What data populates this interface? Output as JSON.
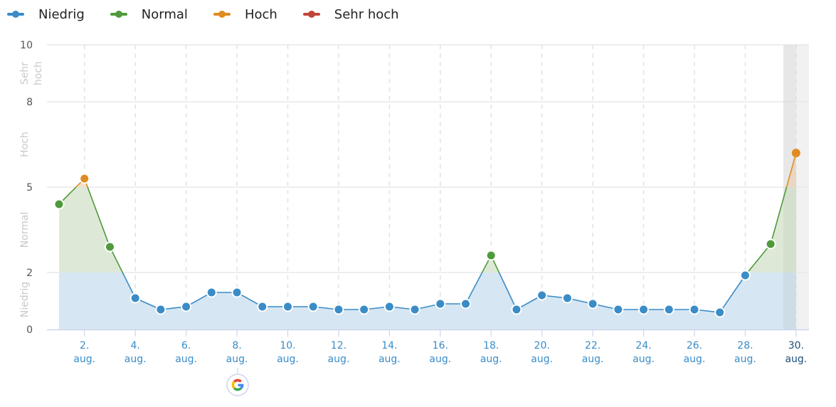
{
  "legend": [
    {
      "label": "Niedrig",
      "color": "#3a8cc7"
    },
    {
      "label": "Normal",
      "color": "#4f9a3c"
    },
    {
      "label": "Hoch",
      "color": "#e08c20"
    },
    {
      "label": "Sehr hoch",
      "color": "#c0453a"
    }
  ],
  "y_axis": {
    "ticks": [
      "10",
      "8",
      "5",
      "2",
      "0"
    ],
    "zones": [
      {
        "label": "Sehr hoch",
        "line1": "Sehr",
        "line2": "hoch"
      },
      {
        "label": "Hoch"
      },
      {
        "label": "Normal"
      },
      {
        "label": "Niedrig"
      }
    ]
  },
  "x_axis": {
    "ticks": [
      {
        "l1": "2.",
        "l2": "aug."
      },
      {
        "l1": "4.",
        "l2": "aug."
      },
      {
        "l1": "6.",
        "l2": "aug."
      },
      {
        "l1": "8.",
        "l2": "aug."
      },
      {
        "l1": "10.",
        "l2": "aug."
      },
      {
        "l1": "12.",
        "l2": "aug."
      },
      {
        "l1": "14.",
        "l2": "aug."
      },
      {
        "l1": "16.",
        "l2": "aug."
      },
      {
        "l1": "18.",
        "l2": "aug."
      },
      {
        "l1": "20.",
        "l2": "aug."
      },
      {
        "l1": "22.",
        "l2": "aug."
      },
      {
        "l1": "24.",
        "l2": "aug."
      },
      {
        "l1": "26.",
        "l2": "aug."
      },
      {
        "l1": "28.",
        "l2": "aug."
      },
      {
        "l1": "30.",
        "l2": "aug."
      }
    ]
  },
  "annotation": {
    "day": 8,
    "icon": "google-icon"
  },
  "colors": {
    "low": "#3a8cc7",
    "normal": "#4f9a3c",
    "high": "#e08c20",
    "very_high": "#c0453a",
    "low_fill": "#d6e6f2",
    "normal_fill": "#dde9d6",
    "high_fill": "#f3dfcb"
  },
  "chart_data": {
    "type": "area",
    "title": "",
    "xlabel": "",
    "ylabel": "",
    "ylim": [
      0,
      10
    ],
    "y_ticks": [
      0,
      2,
      5,
      8,
      10
    ],
    "zones": [
      {
        "name": "Niedrig",
        "range": [
          0,
          2
        ]
      },
      {
        "name": "Normal",
        "range": [
          2,
          5
        ]
      },
      {
        "name": "Hoch",
        "range": [
          5,
          8
        ]
      },
      {
        "name": "Sehr hoch",
        "range": [
          8,
          10
        ]
      }
    ],
    "legend": [
      "Niedrig",
      "Normal",
      "Hoch",
      "Sehr hoch"
    ],
    "legend_position": "top-left",
    "grid": true,
    "highlighted_x": "30. aug.",
    "x": [
      "1. aug.",
      "2. aug.",
      "3. aug.",
      "4. aug.",
      "5. aug.",
      "6. aug.",
      "7. aug.",
      "8. aug.",
      "9. aug.",
      "10. aug.",
      "11. aug.",
      "12. aug.",
      "13. aug.",
      "14. aug.",
      "15. aug.",
      "16. aug.",
      "17. aug.",
      "18. aug.",
      "19. aug.",
      "20. aug.",
      "21. aug.",
      "22. aug.",
      "23. aug.",
      "24. aug.",
      "25. aug.",
      "26. aug.",
      "27. aug.",
      "28. aug.",
      "29. aug.",
      "30. aug."
    ],
    "values": [
      4.4,
      5.3,
      2.9,
      1.1,
      0.7,
      0.8,
      1.3,
      1.3,
      0.8,
      0.8,
      0.8,
      0.7,
      0.7,
      0.8,
      0.7,
      0.9,
      0.9,
      2.6,
      0.7,
      1.2,
      1.1,
      0.9,
      0.7,
      0.7,
      0.7,
      0.7,
      0.6,
      1.9,
      3.0,
      6.2
    ]
  }
}
